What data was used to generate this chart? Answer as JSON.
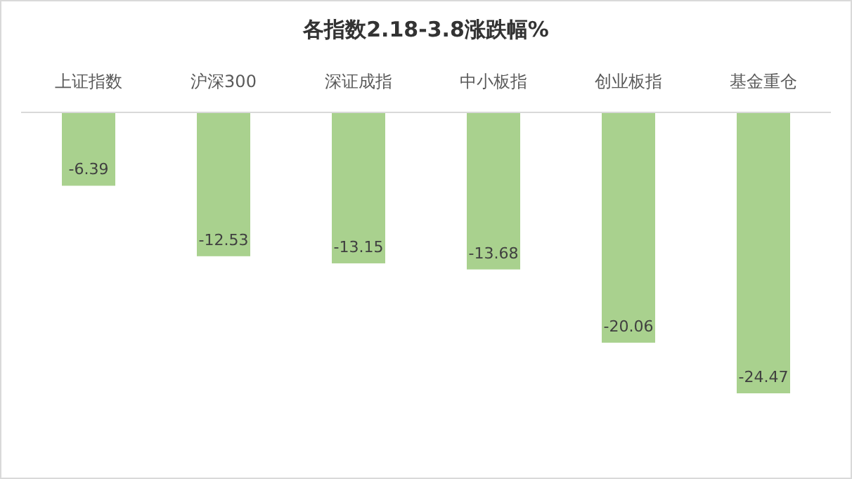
{
  "chart_data": {
    "type": "bar",
    "title": "各指数2.18-3.8涨跌幅%",
    "categories": [
      "上证指数",
      "沪深300",
      "深证成指",
      "中小板指",
      "创业板指",
      "基金重仓"
    ],
    "values": [
      -6.39,
      -12.53,
      -13.15,
      -13.68,
      -20.06,
      -24.47
    ],
    "color": "#a9d18e",
    "data_labels": true
  }
}
